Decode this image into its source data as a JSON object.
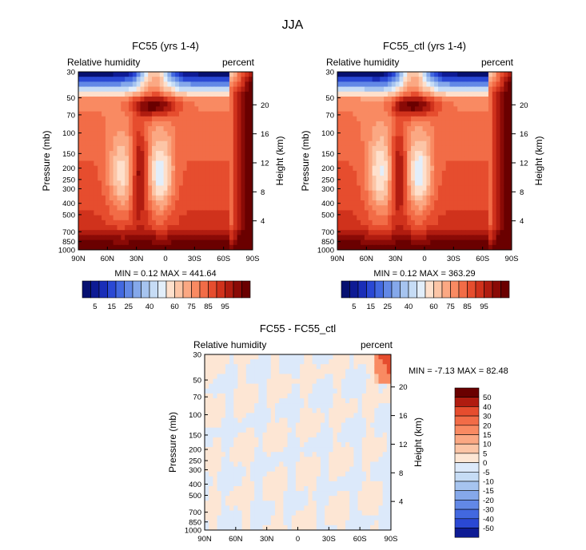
{
  "figure": {
    "season": "JJA"
  },
  "colors": {
    "red_scale": [
      "#fee0cc",
      "#fcc5a6",
      "#fba883",
      "#f98a62",
      "#f26c47",
      "#e64d2e",
      "#d0321c",
      "#b01c10",
      "#8a0a06",
      "#6a0000"
    ],
    "blue_scale": [
      "#e2eefa",
      "#c6dcf5",
      "#a6c4ef",
      "#85a8ea",
      "#6288e6",
      "#4268e0",
      "#2a48d4",
      "#1a2eb8",
      "#0e1b94",
      "#061070"
    ],
    "diff_pos": "#fde6d4",
    "diff_neg": "#dce9fa"
  },
  "chart_data": [
    {
      "type": "heatmap",
      "title": "FC55 (yrs 1-4)",
      "left_subtitle": "Relative humidity",
      "right_subtitle": "percent",
      "ylabel": "Pressure (mb)",
      "y2label": "Height (km)",
      "x_ticks": [
        "90N",
        "60N",
        "30N",
        "0",
        "30S",
        "60S",
        "90S"
      ],
      "y_ticks": [
        "30",
        "50",
        "70",
        "100",
        "150",
        "200",
        "250",
        "300",
        "400",
        "500",
        "700",
        "850",
        "1000"
      ],
      "y2_ticks": [
        "20",
        "16",
        "12",
        "8",
        "4"
      ],
      "stats": "MIN =    0.12   MAX = 441.64",
      "levels": [
        "5",
        "15",
        "25",
        "40",
        "60",
        "75",
        "85",
        "95"
      ]
    },
    {
      "type": "heatmap",
      "title": "FC55_ctl (yrs 1-4)",
      "left_subtitle": "Relative humidity",
      "right_subtitle": "percent",
      "ylabel": "Pressure (mb)",
      "y2label": "Height (km)",
      "x_ticks": [
        "90N",
        "60N",
        "30N",
        "0",
        "30S",
        "60S",
        "90S"
      ],
      "y_ticks": [
        "30",
        "50",
        "70",
        "100",
        "150",
        "200",
        "250",
        "300",
        "400",
        "500",
        "700",
        "850",
        "1000"
      ],
      "y2_ticks": [
        "20",
        "16",
        "12",
        "8",
        "4"
      ],
      "stats": "MIN =    0.12   MAX = 363.29",
      "levels": [
        "5",
        "15",
        "25",
        "40",
        "60",
        "75",
        "85",
        "95"
      ]
    },
    {
      "type": "heatmap",
      "title": "FC55 - FC55_ctl",
      "left_subtitle": "Relative humidity",
      "right_subtitle": "percent",
      "ylabel": "Pressure (mb)",
      "y2label": "Height (km)",
      "x_ticks": [
        "90N",
        "60N",
        "30N",
        "0",
        "30S",
        "60S",
        "90S"
      ],
      "y_ticks": [
        "30",
        "50",
        "70",
        "100",
        "150",
        "200",
        "250",
        "300",
        "400",
        "500",
        "700",
        "850",
        "1000"
      ],
      "y2_ticks": [
        "20",
        "16",
        "12",
        "8",
        "4"
      ],
      "stats": "MIN =   -7.13   MAX =  82.48",
      "levels": [
        "50",
        "40",
        "30",
        "20",
        "15",
        "10",
        "5",
        "0",
        "-5",
        "-10",
        "-15",
        "-20",
        "-30",
        "-40",
        "-50"
      ]
    }
  ]
}
